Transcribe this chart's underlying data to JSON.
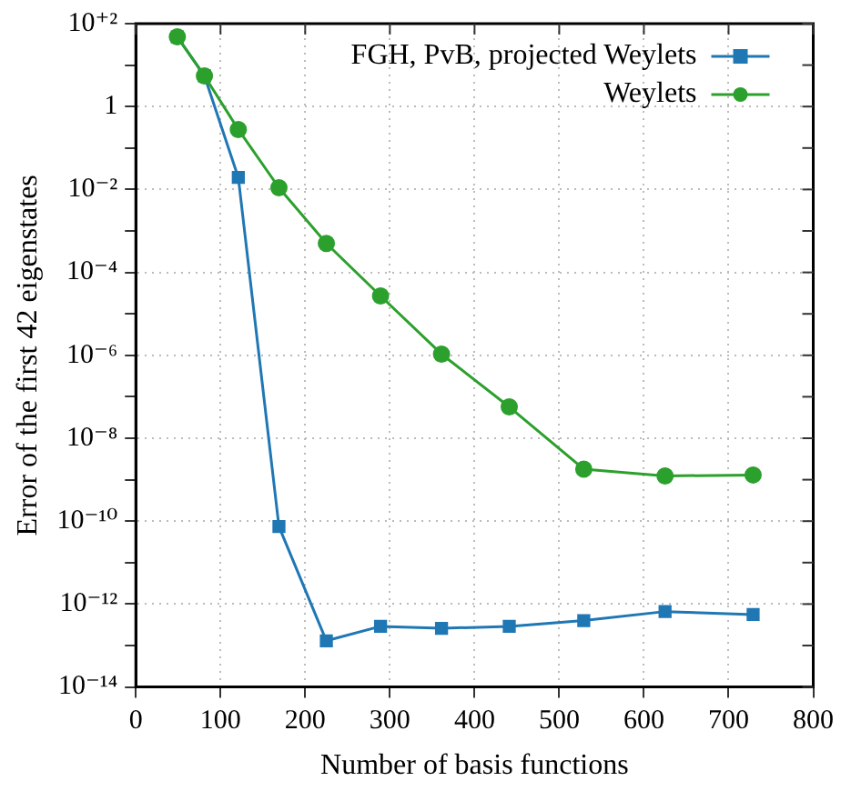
{
  "chart_data": {
    "type": "line",
    "xlabel": "Number of basis functions",
    "ylabel": "Error of the first 42 eigenstates",
    "log": "y",
    "grid": true,
    "legend": "top right",
    "line_style": "solid",
    "xlim": [
      0,
      800
    ],
    "xticks": [
      0,
      100,
      200,
      300,
      400,
      500,
      600,
      700,
      800
    ],
    "ylim": [
      1e-14,
      100
    ],
    "yticks": [
      {
        "value": 1e-14,
        "label": "10⁻¹⁴"
      },
      {
        "value": 1e-13,
        "label": null
      },
      {
        "value": 1e-12,
        "label": "10⁻¹²"
      },
      {
        "value": 1e-11,
        "label": null
      },
      {
        "value": 1e-10,
        "label": "10⁻¹⁰"
      },
      {
        "value": 1e-09,
        "label": null
      },
      {
        "value": 1e-08,
        "label": "10⁻⁸"
      },
      {
        "value": 1e-07,
        "label": null
      },
      {
        "value": 1e-06,
        "label": "10⁻⁶"
      },
      {
        "value": 1e-05,
        "label": null
      },
      {
        "value": 0.0001,
        "label": "10⁻⁴"
      },
      {
        "value": 0.001,
        "label": null
      },
      {
        "value": 0.01,
        "label": "10⁻²"
      },
      {
        "value": 0.1,
        "label": null
      },
      {
        "value": 1,
        "label": "1"
      },
      {
        "value": 10,
        "label": null
      },
      {
        "value": 100,
        "label": "10⁺²"
      }
    ],
    "x": [
      49,
      81,
      121,
      169,
      225,
      289,
      361,
      441,
      529,
      625,
      729
    ],
    "series": [
      {
        "name": "FGH, PvB, projected Weylets",
        "color": "#1f77b4",
        "marker": "square",
        "values": [
          48,
          5.5,
          0.0195,
          7.4e-11,
          1.3e-13,
          2.9e-13,
          2.6e-13,
          2.9e-13,
          4e-13,
          6.6e-13,
          5.6e-13
        ]
      },
      {
        "name": "Weylets",
        "color": "#2ca02c",
        "marker": "circle",
        "values": [
          48,
          5.5,
          0.28,
          0.011,
          0.0005,
          2.7e-05,
          1.07e-06,
          5.7e-08,
          1.8e-09,
          1.23e-09,
          1.3e-09
        ]
      }
    ]
  }
}
